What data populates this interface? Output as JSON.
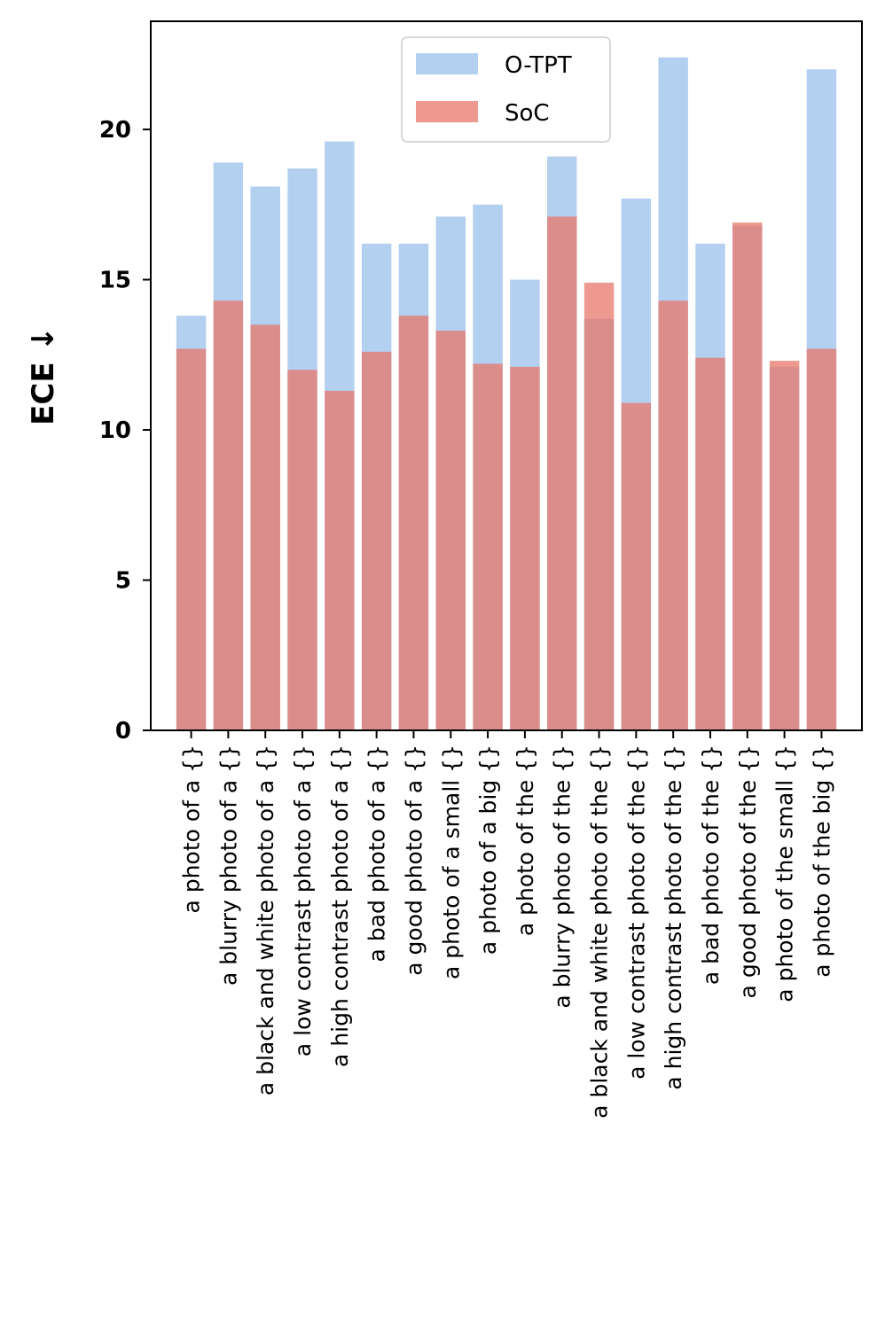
{
  "chart_data": {
    "type": "bar",
    "title": "",
    "xlabel": "",
    "ylabel": "ECE",
    "ylabel_arrow": "↓",
    "ylim": [
      0,
      23.6
    ],
    "yticks": [
      0,
      5,
      10,
      15,
      20
    ],
    "ytick_labels": [
      "0",
      "5",
      "10",
      "15",
      "20"
    ],
    "legend_position": "top-center",
    "categories": [
      "a photo of a {}",
      "a blurry photo of a {}",
      "a black and white photo of a {}",
      "a low contrast photo of a {}",
      "a high contrast photo of a {}",
      "a bad photo of a {}",
      "a good photo of a {}",
      "a photo of a small {}",
      "a photo of a big {}",
      "a photo of the {}",
      "a blurry photo of the {}",
      "a black and white photo of the {}",
      "a low contrast photo of the {}",
      "a high contrast photo of the {}",
      "a bad photo of the {}",
      "a good photo of the {}",
      "a photo of the small {}",
      "a photo of the big {}"
    ],
    "series": [
      {
        "name": "O-TPT",
        "color": "#a6c8ee",
        "values": [
          13.8,
          18.9,
          18.1,
          18.7,
          19.6,
          16.2,
          16.2,
          17.1,
          17.5,
          15.0,
          19.1,
          13.7,
          17.7,
          22.4,
          16.2,
          16.8,
          12.1,
          22.0
        ]
      },
      {
        "name": "SoC",
        "color": "#e8776a",
        "values": [
          12.7,
          14.3,
          13.5,
          12.0,
          11.3,
          12.6,
          13.8,
          13.3,
          12.2,
          12.1,
          17.1,
          14.9,
          10.9,
          14.3,
          12.4,
          16.9,
          12.3,
          12.7
        ]
      }
    ]
  }
}
